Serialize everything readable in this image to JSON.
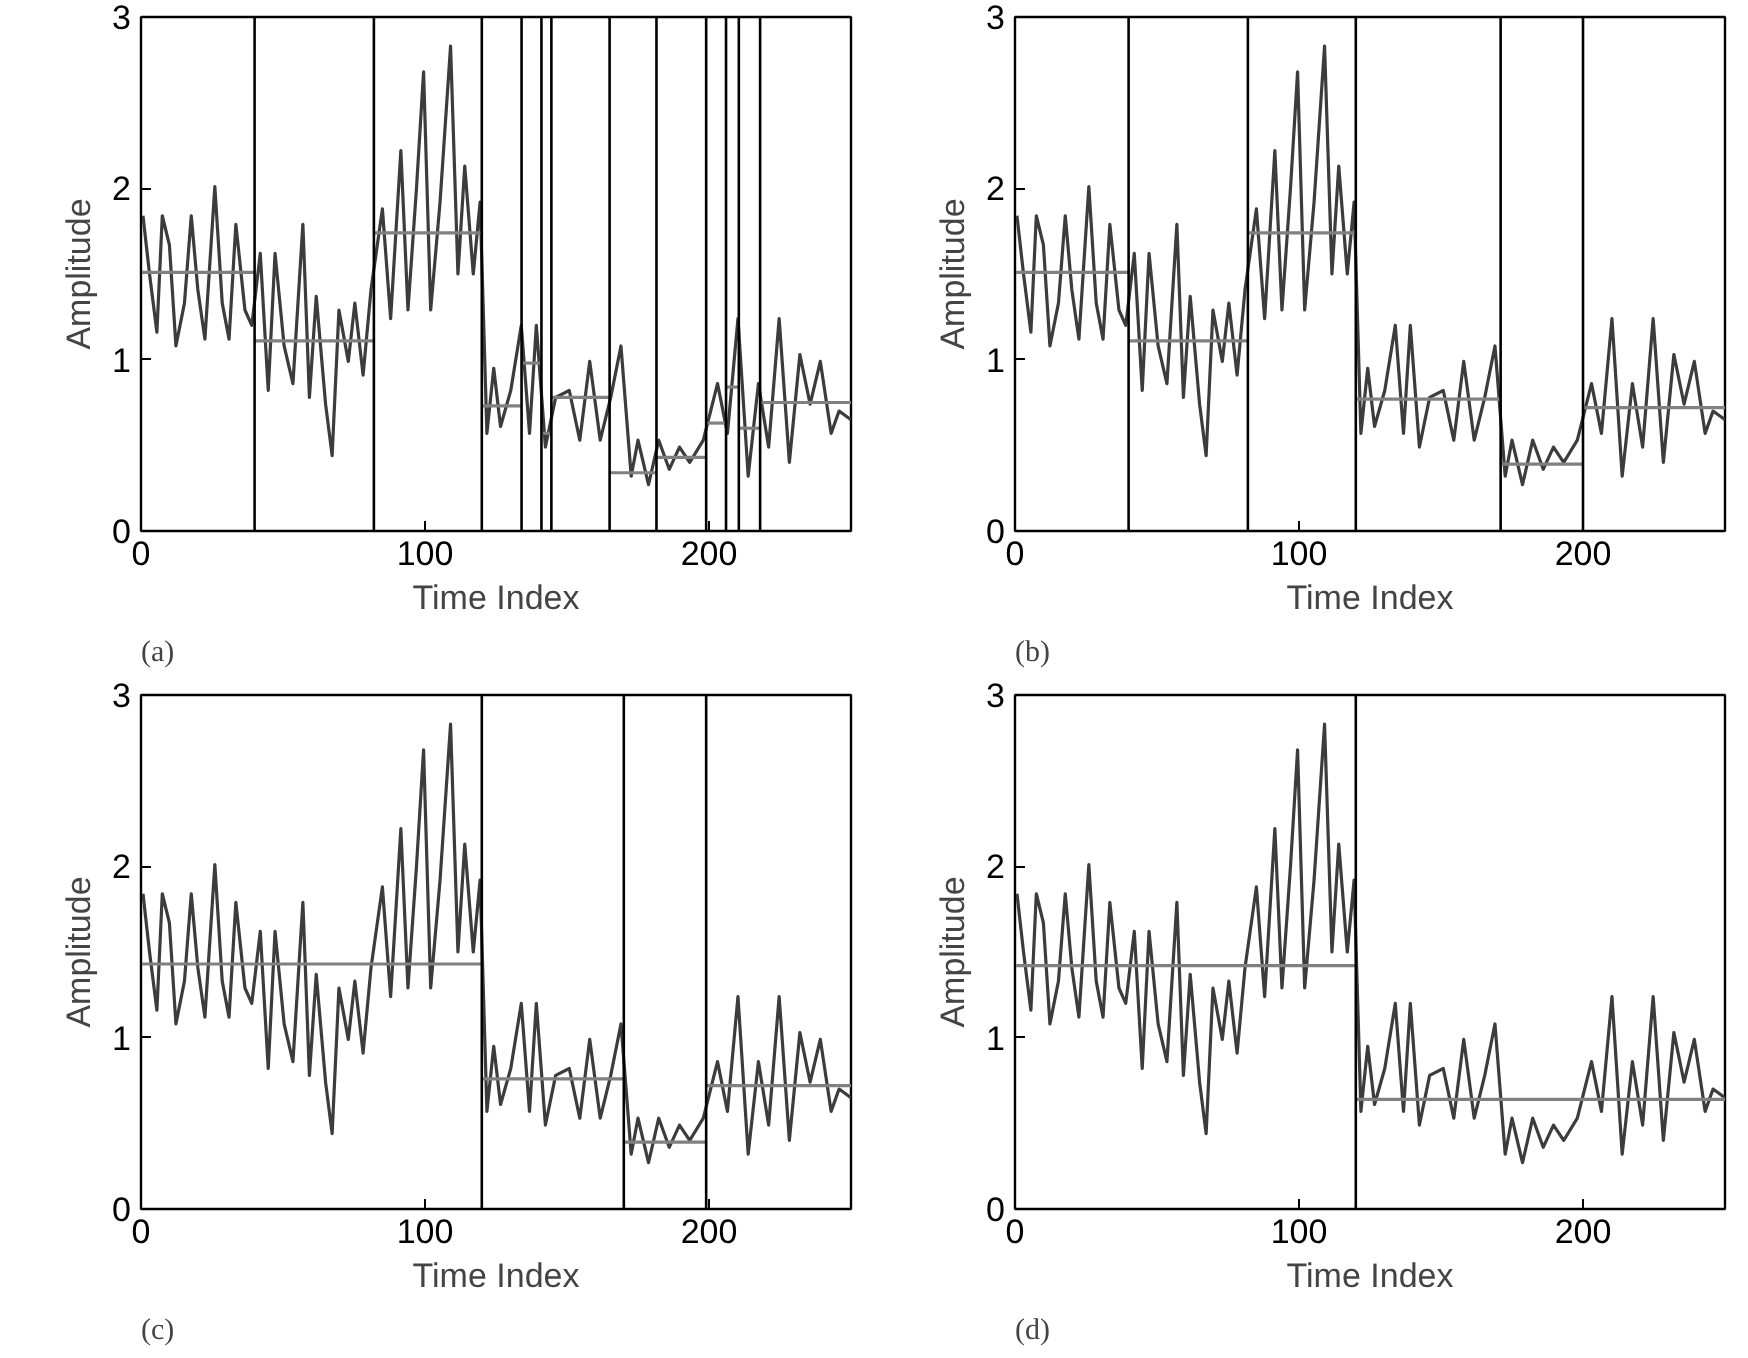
{
  "chart_data": [
    {
      "type": "line",
      "xlabel": "Time Index",
      "ylabel": "Amplitude",
      "annotations": [
        "(a)"
      ],
      "xlim": [
        0,
        250
      ],
      "ylim": [
        0,
        3
      ],
      "xticks": [
        0,
        100,
        200
      ],
      "yticks": [
        0,
        1,
        2,
        3
      ],
      "grid": false,
      "series": [
        {
          "color": "#3c3c3c",
          "x": [
            0.7,
            3,
            5.6,
            7.5,
            10,
            12.3,
            15.3,
            17.7,
            20,
            22.5,
            26,
            28.6,
            31,
            33.4,
            36.6,
            39,
            42,
            44.8,
            47.2,
            50.4,
            53.5,
            57,
            59.3,
            61.7,
            65,
            67.3,
            69.7,
            73,
            75.3,
            78.2,
            81,
            85,
            87.9,
            91.5,
            94,
            97,
            99.5,
            102,
            105.3,
            109,
            111.6,
            114,
            117,
            119.4,
            121.8,
            124.2,
            126.6,
            130.2,
            133.9,
            136.8,
            139.2,
            142.4,
            146,
            150.8,
            154.5,
            158,
            161.7,
            165.4,
            169,
            172.6,
            175,
            178.7,
            182.3,
            186,
            189.6,
            193.2,
            198,
            203,
            206.5,
            210.2,
            213.8,
            217.4,
            221,
            224.7,
            228.3,
            232,
            235.6,
            239.2,
            243,
            245.8,
            250
          ],
          "values": [
            1.84,
            1.5,
            1.16,
            1.84,
            1.67,
            1.08,
            1.33,
            1.84,
            1.41,
            1.12,
            2.01,
            1.33,
            1.12,
            1.79,
            1.29,
            1.2,
            1.62,
            0.82,
            1.62,
            1.08,
            0.86,
            1.79,
            0.78,
            1.37,
            0.74,
            0.44,
            1.29,
            0.99,
            1.33,
            0.91,
            1.41,
            1.88,
            1.24,
            2.22,
            1.29,
            2.0,
            2.68,
            1.29,
            1.92,
            2.83,
            1.5,
            2.13,
            1.5,
            1.92,
            0.57,
            0.95,
            0.61,
            0.82,
            1.2,
            0.57,
            1.2,
            0.49,
            0.78,
            0.82,
            0.53,
            0.99,
            0.53,
            0.78,
            1.08,
            0.32,
            0.53,
            0.27,
            0.53,
            0.36,
            0.49,
            0.4,
            0.53,
            0.86,
            0.57,
            1.24,
            0.32,
            0.86,
            0.49,
            1.24,
            0.4,
            1.03,
            0.74,
            0.99,
            0.57,
            0.7,
            0.65
          ]
        },
        {
          "color": "#808080",
          "x": [
            0,
            40
          ],
          "values": [
            1.51,
            1.51
          ]
        },
        {
          "color": "#808080",
          "x": [
            40,
            82
          ],
          "values": [
            1.11,
            1.11
          ]
        },
        {
          "color": "#808080",
          "x": [
            82,
            120
          ],
          "values": [
            1.74,
            1.74
          ]
        },
        {
          "color": "#808080",
          "x": [
            120,
            134
          ],
          "values": [
            0.73,
            0.73
          ]
        },
        {
          "color": "#808080",
          "x": [
            134,
            141
          ],
          "values": [
            0.98,
            0.98
          ]
        },
        {
          "color": "#808080",
          "x": [
            141,
            144.5
          ],
          "values": [
            0.57,
            0.57
          ]
        },
        {
          "color": "#808080",
          "x": [
            144.5,
            165
          ],
          "values": [
            0.78,
            0.78
          ]
        },
        {
          "color": "#808080",
          "x": [
            165,
            181.5
          ],
          "values": [
            0.34,
            0.34
          ]
        },
        {
          "color": "#808080",
          "x": [
            181.5,
            199
          ],
          "values": [
            0.43,
            0.43
          ]
        },
        {
          "color": "#808080",
          "x": [
            199,
            206
          ],
          "values": [
            0.63,
            0.63
          ]
        },
        {
          "color": "#808080",
          "x": [
            206,
            210.5
          ],
          "values": [
            0.84,
            0.84
          ]
        },
        {
          "color": "#808080",
          "x": [
            210.5,
            218
          ],
          "values": [
            0.6,
            0.6
          ]
        },
        {
          "color": "#808080",
          "x": [
            218,
            250
          ],
          "values": [
            0.75,
            0.75
          ]
        }
      ],
      "ref_lines": [
        {
          "axis": "x",
          "value": 40,
          "color": "#000000"
        },
        {
          "axis": "x",
          "value": 82,
          "color": "#000000"
        },
        {
          "axis": "x",
          "value": 120,
          "color": "#000000"
        },
        {
          "axis": "x",
          "value": 134,
          "color": "#000000"
        },
        {
          "axis": "x",
          "value": 141,
          "color": "#000000"
        },
        {
          "axis": "x",
          "value": 144.5,
          "color": "#000000"
        },
        {
          "axis": "x",
          "value": 165,
          "color": "#000000"
        },
        {
          "axis": "x",
          "value": 181.5,
          "color": "#000000"
        },
        {
          "axis": "x",
          "value": 199,
          "color": "#000000"
        },
        {
          "axis": "x",
          "value": 206,
          "color": "#000000"
        },
        {
          "axis": "x",
          "value": 210.5,
          "color": "#000000"
        },
        {
          "axis": "x",
          "value": 218,
          "color": "#000000"
        }
      ]
    },
    {
      "type": "line",
      "xlabel": "Time Index",
      "ylabel": "Amplitude",
      "annotations": [
        "(b)"
      ],
      "xlim": [
        0,
        250
      ],
      "ylim": [
        0,
        3
      ],
      "xticks": [
        0,
        100,
        200
      ],
      "yticks": [
        0,
        1,
        2,
        3
      ],
      "grid": false,
      "series": [
        {
          "color": "#3c3c3c",
          "x": [
            0.7,
            3,
            5.6,
            7.5,
            10,
            12.3,
            15.3,
            17.7,
            20,
            22.5,
            26,
            28.6,
            31,
            33.4,
            36.6,
            39,
            42,
            44.8,
            47.2,
            50.4,
            53.5,
            57,
            59.3,
            61.7,
            65,
            67.3,
            69.7,
            73,
            75.3,
            78.2,
            81,
            85,
            87.9,
            91.5,
            94,
            97,
            99.5,
            102,
            105.3,
            109,
            111.6,
            114,
            117,
            119.4,
            121.8,
            124.2,
            126.6,
            130.2,
            133.9,
            136.8,
            139.2,
            142.4,
            146,
            150.8,
            154.5,
            158,
            161.7,
            165.4,
            169,
            172.6,
            175,
            178.7,
            182.3,
            186,
            189.6,
            193.2,
            198,
            203,
            206.5,
            210.2,
            213.8,
            217.4,
            221,
            224.7,
            228.3,
            232,
            235.6,
            239.2,
            243,
            245.8,
            250
          ],
          "values": [
            1.84,
            1.5,
            1.16,
            1.84,
            1.67,
            1.08,
            1.33,
            1.84,
            1.41,
            1.12,
            2.01,
            1.33,
            1.12,
            1.79,
            1.29,
            1.2,
            1.62,
            0.82,
            1.62,
            1.08,
            0.86,
            1.79,
            0.78,
            1.37,
            0.74,
            0.44,
            1.29,
            0.99,
            1.33,
            0.91,
            1.41,
            1.88,
            1.24,
            2.22,
            1.29,
            2.0,
            2.68,
            1.29,
            1.92,
            2.83,
            1.5,
            2.13,
            1.5,
            1.92,
            0.57,
            0.95,
            0.61,
            0.82,
            1.2,
            0.57,
            1.2,
            0.49,
            0.78,
            0.82,
            0.53,
            0.99,
            0.53,
            0.78,
            1.08,
            0.32,
            0.53,
            0.27,
            0.53,
            0.36,
            0.49,
            0.4,
            0.53,
            0.86,
            0.57,
            1.24,
            0.32,
            0.86,
            0.49,
            1.24,
            0.4,
            1.03,
            0.74,
            0.99,
            0.57,
            0.7,
            0.65
          ]
        },
        {
          "color": "#808080",
          "x": [
            0,
            40
          ],
          "values": [
            1.51,
            1.51
          ]
        },
        {
          "color": "#808080",
          "x": [
            40,
            82
          ],
          "values": [
            1.11,
            1.11
          ]
        },
        {
          "color": "#808080",
          "x": [
            82,
            120
          ],
          "values": [
            1.74,
            1.74
          ]
        },
        {
          "color": "#808080",
          "x": [
            120,
            171
          ],
          "values": [
            0.77,
            0.77
          ]
        },
        {
          "color": "#808080",
          "x": [
            171,
            200
          ],
          "values": [
            0.39,
            0.39
          ]
        },
        {
          "color": "#808080",
          "x": [
            200,
            250
          ],
          "values": [
            0.72,
            0.72
          ]
        }
      ],
      "ref_lines": [
        {
          "axis": "x",
          "value": 40,
          "color": "#000000"
        },
        {
          "axis": "x",
          "value": 82,
          "color": "#000000"
        },
        {
          "axis": "x",
          "value": 120,
          "color": "#000000"
        },
        {
          "axis": "x",
          "value": 171,
          "color": "#000000"
        },
        {
          "axis": "x",
          "value": 200,
          "color": "#000000"
        }
      ]
    },
    {
      "type": "line",
      "xlabel": "Time Index",
      "ylabel": "Amplitude",
      "annotations": [
        "(c)"
      ],
      "xlim": [
        0,
        250
      ],
      "ylim": [
        0,
        3
      ],
      "xticks": [
        0,
        100,
        200
      ],
      "yticks": [
        0,
        1,
        2,
        3
      ],
      "grid": false,
      "series": [
        {
          "color": "#3c3c3c",
          "x": [
            0.7,
            3,
            5.6,
            7.5,
            10,
            12.3,
            15.3,
            17.7,
            20,
            22.5,
            26,
            28.6,
            31,
            33.4,
            36.6,
            39,
            42,
            44.8,
            47.2,
            50.4,
            53.5,
            57,
            59.3,
            61.7,
            65,
            67.3,
            69.7,
            73,
            75.3,
            78.2,
            81,
            85,
            87.9,
            91.5,
            94,
            97,
            99.5,
            102,
            105.3,
            109,
            111.6,
            114,
            117,
            119.4,
            121.8,
            124.2,
            126.6,
            130.2,
            133.9,
            136.8,
            139.2,
            142.4,
            146,
            150.8,
            154.5,
            158,
            161.7,
            165.4,
            169,
            172.6,
            175,
            178.7,
            182.3,
            186,
            189.6,
            193.2,
            198,
            203,
            206.5,
            210.2,
            213.8,
            217.4,
            221,
            224.7,
            228.3,
            232,
            235.6,
            239.2,
            243,
            245.8,
            250
          ],
          "values": [
            1.84,
            1.5,
            1.16,
            1.84,
            1.67,
            1.08,
            1.33,
            1.84,
            1.41,
            1.12,
            2.01,
            1.33,
            1.12,
            1.79,
            1.29,
            1.2,
            1.62,
            0.82,
            1.62,
            1.08,
            0.86,
            1.79,
            0.78,
            1.37,
            0.74,
            0.44,
            1.29,
            0.99,
            1.33,
            0.91,
            1.41,
            1.88,
            1.24,
            2.22,
            1.29,
            2.0,
            2.68,
            1.29,
            1.92,
            2.83,
            1.5,
            2.13,
            1.5,
            1.92,
            0.57,
            0.95,
            0.61,
            0.82,
            1.2,
            0.57,
            1.2,
            0.49,
            0.78,
            0.82,
            0.53,
            0.99,
            0.53,
            0.78,
            1.08,
            0.32,
            0.53,
            0.27,
            0.53,
            0.36,
            0.49,
            0.4,
            0.53,
            0.86,
            0.57,
            1.24,
            0.32,
            0.86,
            0.49,
            1.24,
            0.4,
            1.03,
            0.74,
            0.99,
            0.57,
            0.7,
            0.65
          ]
        },
        {
          "color": "#808080",
          "x": [
            0,
            120
          ],
          "values": [
            1.43,
            1.43
          ]
        },
        {
          "color": "#808080",
          "x": [
            120,
            170
          ],
          "values": [
            0.76,
            0.76
          ]
        },
        {
          "color": "#808080",
          "x": [
            170,
            199
          ],
          "values": [
            0.39,
            0.39
          ]
        },
        {
          "color": "#808080",
          "x": [
            199,
            250
          ],
          "values": [
            0.72,
            0.72
          ]
        }
      ],
      "ref_lines": [
        {
          "axis": "x",
          "value": 120,
          "color": "#000000"
        },
        {
          "axis": "x",
          "value": 170,
          "color": "#000000"
        },
        {
          "axis": "x",
          "value": 199,
          "color": "#000000"
        }
      ]
    },
    {
      "type": "line",
      "xlabel": "Time Index",
      "ylabel": "Amplitude",
      "annotations": [
        "(d)"
      ],
      "xlim": [
        0,
        250
      ],
      "ylim": [
        0,
        3
      ],
      "xticks": [
        0,
        100,
        200
      ],
      "yticks": [
        0,
        1,
        2,
        3
      ],
      "grid": false,
      "series": [
        {
          "color": "#3c3c3c",
          "x": [
            0.7,
            3,
            5.6,
            7.5,
            10,
            12.3,
            15.3,
            17.7,
            20,
            22.5,
            26,
            28.6,
            31,
            33.4,
            36.6,
            39,
            42,
            44.8,
            47.2,
            50.4,
            53.5,
            57,
            59.3,
            61.7,
            65,
            67.3,
            69.7,
            73,
            75.3,
            78.2,
            81,
            85,
            87.9,
            91.5,
            94,
            97,
            99.5,
            102,
            105.3,
            109,
            111.6,
            114,
            117,
            119.4,
            121.8,
            124.2,
            126.6,
            130.2,
            133.9,
            136.8,
            139.2,
            142.4,
            146,
            150.8,
            154.5,
            158,
            161.7,
            165.4,
            169,
            172.6,
            175,
            178.7,
            182.3,
            186,
            189.6,
            193.2,
            198,
            203,
            206.5,
            210.2,
            213.8,
            217.4,
            221,
            224.7,
            228.3,
            232,
            235.6,
            239.2,
            243,
            245.8,
            250
          ],
          "values": [
            1.84,
            1.5,
            1.16,
            1.84,
            1.67,
            1.08,
            1.33,
            1.84,
            1.41,
            1.12,
            2.01,
            1.33,
            1.12,
            1.79,
            1.29,
            1.2,
            1.62,
            0.82,
            1.62,
            1.08,
            0.86,
            1.79,
            0.78,
            1.37,
            0.74,
            0.44,
            1.29,
            0.99,
            1.33,
            0.91,
            1.41,
            1.88,
            1.24,
            2.22,
            1.29,
            2.0,
            2.68,
            1.29,
            1.92,
            2.83,
            1.5,
            2.13,
            1.5,
            1.92,
            0.57,
            0.95,
            0.61,
            0.82,
            1.2,
            0.57,
            1.2,
            0.49,
            0.78,
            0.82,
            0.53,
            0.99,
            0.53,
            0.78,
            1.08,
            0.32,
            0.53,
            0.27,
            0.53,
            0.36,
            0.49,
            0.4,
            0.53,
            0.86,
            0.57,
            1.24,
            0.32,
            0.86,
            0.49,
            1.24,
            0.4,
            1.03,
            0.74,
            0.99,
            0.57,
            0.7,
            0.65
          ]
        },
        {
          "color": "#808080",
          "x": [
            0,
            120
          ],
          "values": [
            1.42,
            1.42
          ]
        },
        {
          "color": "#808080",
          "x": [
            120,
            250
          ],
          "values": [
            0.64,
            0.64
          ]
        }
      ],
      "ref_lines": [
        {
          "axis": "x",
          "value": 120,
          "color": "#000000"
        }
      ]
    }
  ]
}
